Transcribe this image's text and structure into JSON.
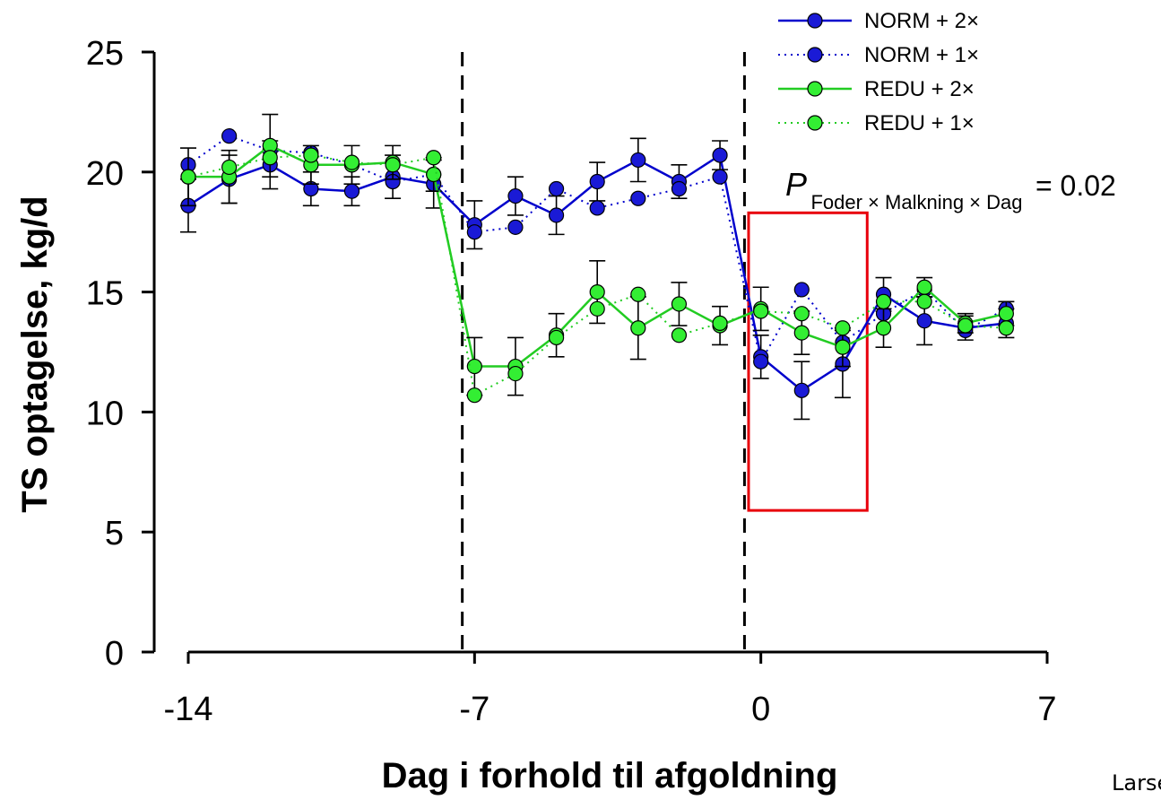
{
  "chart_data": {
    "type": "line",
    "xlabel": "Dag i forhold til afgoldning",
    "ylabel": "TS optagelse, kg/d",
    "xlim": [
      -14,
      7
    ],
    "ylim": [
      0,
      25
    ],
    "x_ticks": [
      -14,
      -7,
      0,
      7
    ],
    "y_ticks": [
      0,
      5,
      10,
      15,
      20,
      25
    ],
    "grid": false,
    "legend_position": "top-right",
    "vlines": [
      -7.3,
      -0.4
    ],
    "highlight_box": {
      "x": [
        -0.3,
        2.6
      ],
      "y": [
        5.9,
        18.3
      ],
      "color": "#e8000b"
    },
    "annotation": {
      "prefix": "P",
      "subscript": "Foder × Malkning × Dag",
      "suffix": "= 0.02"
    },
    "credit": "Larse",
    "x": [
      -14,
      -13,
      -12,
      -11,
      -10,
      -9,
      -8,
      -7,
      -6,
      -5,
      -4,
      -3,
      -2,
      -1,
      0,
      1,
      2,
      3,
      4,
      5,
      6
    ],
    "series": [
      {
        "name": "NORM + 2×",
        "style": "solid",
        "line_color": "#0000cc",
        "marker_color": "#1a1ad6",
        "values": [
          18.6,
          19.7,
          20.3,
          19.3,
          19.2,
          19.8,
          19.5,
          17.8,
          19.0,
          18.2,
          19.6,
          20.5,
          19.6,
          20.7,
          12.3,
          10.9,
          12.0,
          14.9,
          13.8,
          13.5,
          13.7
        ],
        "errors": [
          1.1,
          1.0,
          1.0,
          0.7,
          0.6,
          0.9,
          1.0,
          1.0,
          0.8,
          0.8,
          0.8,
          0.9,
          0.7,
          0.6,
          0.9,
          1.2,
          1.4,
          0.7,
          1.0,
          0.5,
          0.6
        ]
      },
      {
        "name": "NORM + 1×",
        "style": "dotted",
        "line_color": "#0000cc",
        "marker_color": "#1a1ad6",
        "values": [
          20.3,
          21.5,
          20.9,
          20.8,
          20.3,
          19.6,
          19.9,
          17.5,
          17.7,
          19.3,
          18.5,
          18.9,
          19.3,
          19.8,
          12.1,
          15.1,
          12.9,
          14.1,
          15.1,
          13.4,
          14.3
        ]
      },
      {
        "name": "REDU + 2×",
        "style": "solid",
        "line_color": "#22cc22",
        "marker_color": "#33ee33",
        "values": [
          19.8,
          19.8,
          21.1,
          20.3,
          20.3,
          20.4,
          19.9,
          11.9,
          11.9,
          13.2,
          15.0,
          13.5,
          14.5,
          13.6,
          14.3,
          13.3,
          12.7,
          13.5,
          15.2,
          13.7,
          14.1
        ],
        "errors": [
          1.2,
          1.1,
          1.3,
          0.8,
          0.8,
          0.7,
          0.7,
          1.2,
          1.2,
          0.9,
          1.3,
          1.3,
          0.9,
          0.8,
          0.9,
          0.9,
          0.8,
          0.8,
          0.4,
          0.4,
          0.5
        ]
      },
      {
        "name": "REDU + 1×",
        "style": "dotted",
        "line_color": "#22cc22",
        "marker_color": "#33ee33",
        "values": [
          19.8,
          20.2,
          20.6,
          20.7,
          20.4,
          20.3,
          20.6,
          10.7,
          11.6,
          13.1,
          14.3,
          14.9,
          13.2,
          13.7,
          14.2,
          14.1,
          13.5,
          14.6,
          14.6,
          13.6,
          13.5
        ]
      }
    ]
  }
}
